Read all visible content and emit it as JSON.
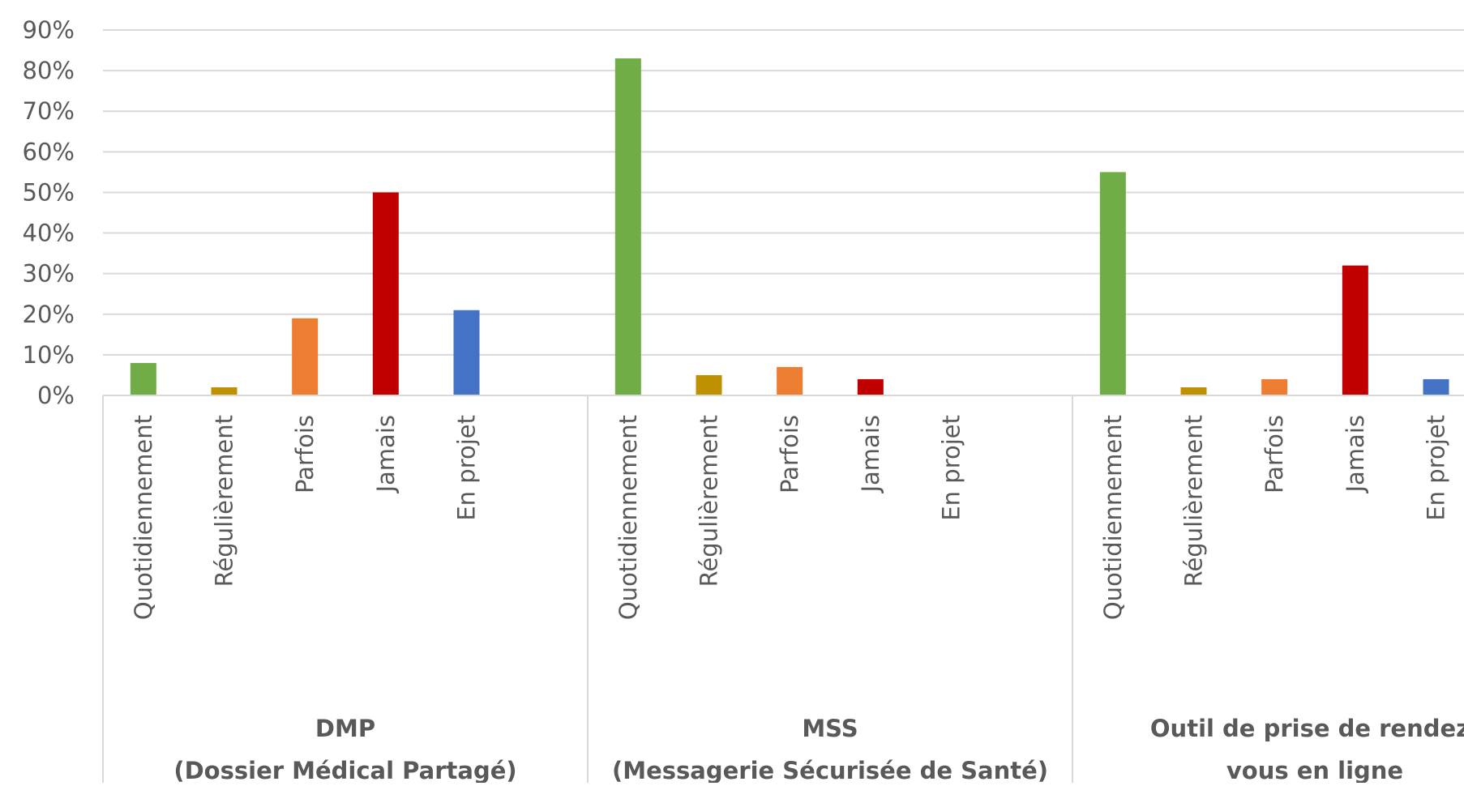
{
  "chart_data": {
    "type": "bar",
    "ylim": [
      0,
      90
    ],
    "yticks": [
      {
        "value": 0,
        "label": "0%"
      },
      {
        "value": 10,
        "label": "10%"
      },
      {
        "value": 20,
        "label": "20%"
      },
      {
        "value": 30,
        "label": "30%"
      },
      {
        "value": 40,
        "label": "40%"
      },
      {
        "value": 50,
        "label": "50%"
      },
      {
        "value": 60,
        "label": "60%"
      },
      {
        "value": 70,
        "label": "70%"
      },
      {
        "value": 80,
        "label": "80%"
      },
      {
        "value": 90,
        "label": "90%"
      }
    ],
    "grid": true,
    "colors": [
      "#70ad47",
      "#bf9000",
      "#ed7d31",
      "#c00000",
      "#4472c4"
    ],
    "groups": [
      {
        "name": [
          "DMP",
          "(Dossier Médical Partagé)"
        ],
        "categories": [
          "Quotidiennement",
          "Régulièrement",
          "Parfois",
          "Jamais",
          "En projet"
        ],
        "values": [
          8,
          2,
          19,
          50,
          21
        ]
      },
      {
        "name": [
          "MSS",
          "(Messagerie Sécurisée de Santé)"
        ],
        "categories": [
          "Quotidiennement",
          "Régulièrement",
          "Parfois",
          "Jamais",
          "En projet"
        ],
        "values": [
          83,
          5,
          7,
          4,
          0
        ]
      },
      {
        "name": [
          "Outil de prise de rendez-",
          "vous en ligne"
        ],
        "categories": [
          "Quotidiennement",
          "Régulièrement",
          "Parfois",
          "Jamais",
          "En projet"
        ],
        "values": [
          55,
          2,
          4,
          32,
          4
        ]
      }
    ]
  }
}
